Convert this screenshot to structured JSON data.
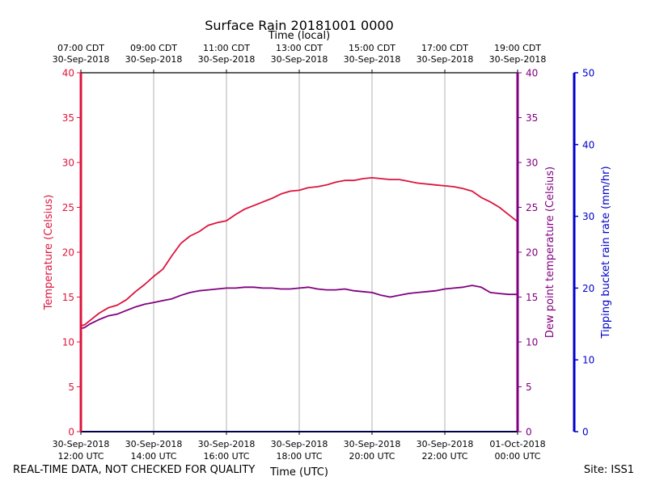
{
  "colors": {
    "temperature": "#dc143c",
    "dewpoint": "#800080",
    "rain": "#0000cd",
    "grid": "#b0b0b0",
    "axis": "#000000"
  },
  "chart_data": {
    "type": "line",
    "title": "Surface Rain 20181001 0000",
    "top_axis_label": "Time (local)",
    "xlabel": "Time (UTC)",
    "ylabel_left": "Temperature (Celsius)",
    "ylabel_right_inner": "Dew point temperature (Celsius)",
    "ylabel_right_outer": "Tipping bucket rain rate (mm/hr)",
    "xlim_hours_utc": [
      12,
      24
    ],
    "ylim_temperature": [
      0,
      40
    ],
    "ylim_dewpoint": [
      0,
      40
    ],
    "ylim_rain": [
      0,
      50
    ],
    "grid": "vertical",
    "top_ticks": [
      {
        "hour": 12,
        "line1": "07:00 CDT",
        "line2": "30-Sep-2018"
      },
      {
        "hour": 14,
        "line1": "09:00 CDT",
        "line2": "30-Sep-2018"
      },
      {
        "hour": 16,
        "line1": "11:00 CDT",
        "line2": "30-Sep-2018"
      },
      {
        "hour": 18,
        "line1": "13:00 CDT",
        "line2": "30-Sep-2018"
      },
      {
        "hour": 20,
        "line1": "15:00 CDT",
        "line2": "30-Sep-2018"
      },
      {
        "hour": 22,
        "line1": "17:00 CDT",
        "line2": "30-Sep-2018"
      },
      {
        "hour": 24,
        "line1": "19:00 CDT",
        "line2": "30-Sep-2018"
      }
    ],
    "bottom_ticks": [
      {
        "hour": 12,
        "line1": "30-Sep-2018",
        "line2": "12:00 UTC"
      },
      {
        "hour": 14,
        "line1": "30-Sep-2018",
        "line2": "14:00 UTC"
      },
      {
        "hour": 16,
        "line1": "30-Sep-2018",
        "line2": "16:00 UTC"
      },
      {
        "hour": 18,
        "line1": "30-Sep-2018",
        "line2": "18:00 UTC"
      },
      {
        "hour": 20,
        "line1": "30-Sep-2018",
        "line2": "20:00 UTC"
      },
      {
        "hour": 22,
        "line1": "30-Sep-2018",
        "line2": "22:00 UTC"
      },
      {
        "hour": 24,
        "line1": "01-Oct-2018",
        "line2": "00:00 UTC"
      }
    ],
    "yticks_temperature": [
      0,
      5,
      10,
      15,
      20,
      25,
      30,
      35,
      40
    ],
    "yticks_dewpoint": [
      0,
      5,
      10,
      15,
      20,
      25,
      30,
      35,
      40
    ],
    "yticks_rain": [
      0,
      10,
      20,
      30,
      40,
      50
    ],
    "series": [
      {
        "name": "Temperature",
        "axis": "temperature",
        "x_hours_utc": [
          12.0,
          12.1,
          12.25,
          12.5,
          12.75,
          13.0,
          13.25,
          13.5,
          13.75,
          14.0,
          14.25,
          14.5,
          14.75,
          15.0,
          15.25,
          15.5,
          15.75,
          16.0,
          16.25,
          16.5,
          16.75,
          17.0,
          17.25,
          17.5,
          17.75,
          18.0,
          18.25,
          18.5,
          18.75,
          19.0,
          19.25,
          19.5,
          19.75,
          20.0,
          20.25,
          20.5,
          20.75,
          21.0,
          21.25,
          21.5,
          21.75,
          22.0,
          22.25,
          22.5,
          22.75,
          23.0,
          23.25,
          23.5,
          23.75,
          24.0
        ],
        "values": [
          11.8,
          11.9,
          12.4,
          13.2,
          13.8,
          14.1,
          14.7,
          15.6,
          16.4,
          17.3,
          18.1,
          19.6,
          21.0,
          21.8,
          22.3,
          23.0,
          23.3,
          23.5,
          24.2,
          24.8,
          25.2,
          25.6,
          26.0,
          26.5,
          26.8,
          26.9,
          27.2,
          27.3,
          27.5,
          27.8,
          28.0,
          28.0,
          28.2,
          28.3,
          28.2,
          28.1,
          28.1,
          27.9,
          27.7,
          27.6,
          27.5,
          27.4,
          27.3,
          27.1,
          26.8,
          26.1,
          25.6,
          25.0,
          24.2,
          23.4
        ]
      },
      {
        "name": "Dew point temperature",
        "axis": "dewpoint",
        "x_hours_utc": [
          12.0,
          12.1,
          12.25,
          12.5,
          12.75,
          13.0,
          13.25,
          13.5,
          13.75,
          14.0,
          14.25,
          14.5,
          14.75,
          15.0,
          15.25,
          15.5,
          15.75,
          16.0,
          16.25,
          16.5,
          16.75,
          17.0,
          17.25,
          17.5,
          17.75,
          18.0,
          18.25,
          18.5,
          18.75,
          19.0,
          19.25,
          19.5,
          19.75,
          20.0,
          20.25,
          20.5,
          20.75,
          21.0,
          21.25,
          21.5,
          21.75,
          22.0,
          22.25,
          22.5,
          22.75,
          23.0,
          23.25,
          23.5,
          23.75,
          24.0
        ],
        "values": [
          11.5,
          11.6,
          12.0,
          12.5,
          12.9,
          13.1,
          13.5,
          13.9,
          14.2,
          14.4,
          14.6,
          14.8,
          15.2,
          15.5,
          15.7,
          15.8,
          15.9,
          16.0,
          16.0,
          16.1,
          16.1,
          16.0,
          16.0,
          15.9,
          15.9,
          16.0,
          16.1,
          15.9,
          15.8,
          15.8,
          15.9,
          15.7,
          15.6,
          15.5,
          15.2,
          15.0,
          15.2,
          15.4,
          15.5,
          15.6,
          15.7,
          15.9,
          16.0,
          16.1,
          16.3,
          16.1,
          15.5,
          15.4,
          15.3,
          15.3
        ]
      },
      {
        "name": "Tipping bucket rain rate",
        "axis": "rain",
        "x_hours_utc": [
          12.0,
          24.0
        ],
        "values": [
          0,
          0
        ]
      }
    ]
  },
  "footer": {
    "disclaimer": "REAL-TIME DATA, NOT CHECKED FOR QUALITY",
    "site": "Site: ISS1"
  }
}
